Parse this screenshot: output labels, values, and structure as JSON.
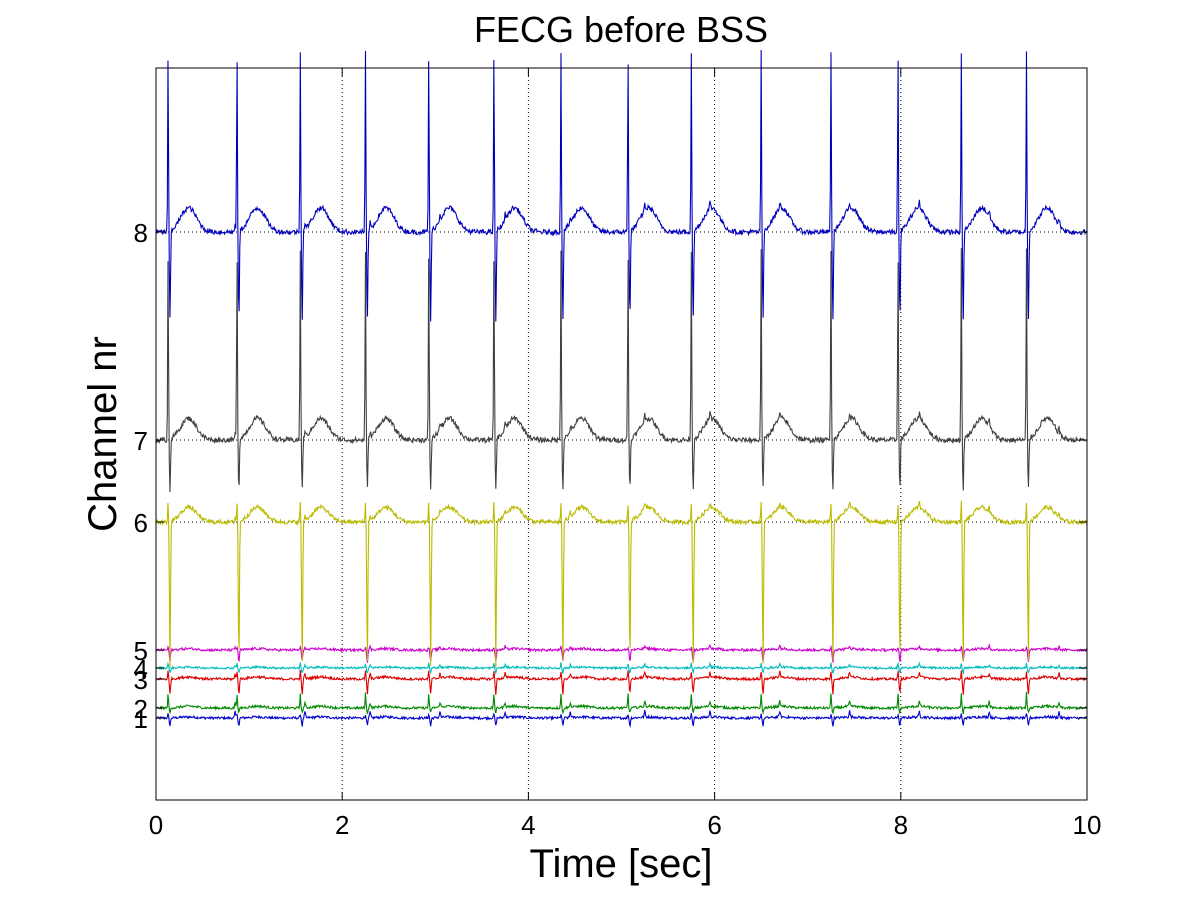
{
  "chart_data": {
    "type": "line",
    "title": "FECG before BSS",
    "xlabel": "Time [sec]",
    "ylabel": "Channel nr",
    "xlim": [
      0,
      10
    ],
    "x_ticks": [
      "0",
      "2",
      "4",
      "6",
      "8",
      "10"
    ],
    "x_tick_values": [
      0,
      2,
      4,
      6,
      8,
      10
    ],
    "grid": "dotted vertical lines at x ticks, dotted baselines for channels 6, 7, 8",
    "legend": "none",
    "maternal_beat_times_sec": [
      0.13,
      0.87,
      1.55,
      2.25,
      2.93,
      3.63,
      4.35,
      5.07,
      5.75,
      6.5,
      7.25,
      7.97,
      8.65,
      9.35
    ],
    "fetal_beat_times_sec": [
      0.85,
      1.6,
      2.3,
      3.05,
      3.75,
      4.45,
      5.25,
      5.95,
      6.7,
      7.45,
      8.2,
      8.95,
      9.7
    ],
    "series": [
      {
        "name": "1",
        "color": "#0000cc",
        "baseline_channel": 1,
        "spike_up": 0.04,
        "spike_down": 0.08,
        "fetal_amp": 0.06,
        "noise": 0.012
      },
      {
        "name": "2",
        "color": "#008800",
        "baseline_channel": 2,
        "spike_up": 0.15,
        "spike_down": 0.05,
        "fetal_amp": 0.05,
        "noise": 0.012
      },
      {
        "name": "3",
        "color": "#dd0000",
        "baseline_channel": 3,
        "spike_up": 0.08,
        "spike_down": 0.15,
        "fetal_amp": 0.05,
        "noise": 0.012
      },
      {
        "name": "4",
        "color": "#00bbbb",
        "baseline_channel": 4,
        "spike_up": 0.05,
        "spike_down": 0.05,
        "fetal_amp": 0.03,
        "noise": 0.01
      },
      {
        "name": "5",
        "color": "#cc00cc",
        "baseline_channel": 5,
        "spike_up": 0.03,
        "spike_down": 0.12,
        "fetal_amp": 0.03,
        "noise": 0.012
      },
      {
        "name": "6",
        "color": "#bbbb00",
        "baseline_channel": 6,
        "spike_up": 0.2,
        "spike_down": 1.44,
        "fetal_amp": 0.05,
        "noise": 0.02
      },
      {
        "name": "7",
        "color": "#404040",
        "baseline_channel": 7,
        "spike_up": 1.9,
        "spike_down": 0.5,
        "fetal_amp": 0.06,
        "noise": 0.025
      },
      {
        "name": "8",
        "color": "#0000bb",
        "baseline_channel": 8,
        "spike_up": 1.8,
        "spike_down": 0.88,
        "fetal_amp": 0.06,
        "noise": 0.025
      }
    ],
    "y_ticks": [
      {
        "label": "1",
        "channel": 1
      },
      {
        "label": "2",
        "channel": 2
      },
      {
        "label": "3",
        "channel": 3
      },
      {
        "label": "4",
        "channel": 4
      },
      {
        "label": "5",
        "channel": 5
      },
      {
        "label": "6",
        "channel": 6
      },
      {
        "label": "7",
        "channel": 7
      },
      {
        "label": "8",
        "channel": 8
      }
    ]
  }
}
